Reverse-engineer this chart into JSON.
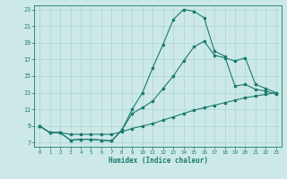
{
  "xlabel": "Humidex (Indice chaleur)",
  "bg_color": "#cce9e8",
  "grid_color": "#aad4d2",
  "line_color": "#1a7a6e",
  "xlim": [
    -0.5,
    23.5
  ],
  "ylim": [
    6.5,
    23.5
  ],
  "yticks": [
    7,
    9,
    11,
    13,
    15,
    17,
    19,
    21,
    23
  ],
  "xticks": [
    0,
    1,
    2,
    3,
    4,
    5,
    6,
    7,
    8,
    9,
    10,
    11,
    12,
    13,
    14,
    15,
    16,
    17,
    18,
    19,
    20,
    21,
    22,
    23
  ],
  "curve_bottom_x": [
    0,
    1,
    2,
    3,
    4,
    5,
    6,
    7,
    8,
    9,
    10,
    11,
    12,
    13,
    14,
    15,
    16,
    17,
    18,
    19,
    20,
    21,
    22,
    23
  ],
  "curve_bottom_y": [
    9.0,
    8.2,
    8.2,
    8.0,
    8.0,
    8.0,
    8.0,
    8.0,
    8.3,
    8.7,
    9.0,
    9.3,
    9.7,
    10.1,
    10.5,
    10.9,
    11.2,
    11.5,
    11.8,
    12.1,
    12.4,
    12.6,
    12.8,
    13.0
  ],
  "curve_mid_x": [
    0,
    1,
    2,
    3,
    4,
    5,
    6,
    7,
    8,
    9,
    10,
    11,
    12,
    13,
    14,
    15,
    16,
    17,
    18,
    19,
    20,
    21,
    22,
    23
  ],
  "curve_mid_y": [
    9.0,
    8.2,
    8.2,
    7.3,
    7.4,
    7.4,
    7.3,
    7.2,
    8.5,
    10.5,
    11.2,
    12.0,
    13.5,
    15.0,
    16.8,
    18.5,
    19.2,
    17.5,
    17.2,
    16.8,
    17.2,
    14.0,
    13.5,
    13.0
  ],
  "curve_top_x": [
    0,
    1,
    2,
    3,
    4,
    5,
    6,
    7,
    8,
    9,
    10,
    11,
    12,
    13,
    14,
    15,
    16,
    17,
    18,
    19,
    20,
    21,
    22,
    23
  ],
  "curve_top_y": [
    9.0,
    8.2,
    8.2,
    7.3,
    7.4,
    7.4,
    7.3,
    7.2,
    8.5,
    11.0,
    13.0,
    16.0,
    18.8,
    21.8,
    23.0,
    22.8,
    22.0,
    18.0,
    17.4,
    13.8,
    14.0,
    13.4,
    13.2,
    12.8
  ]
}
